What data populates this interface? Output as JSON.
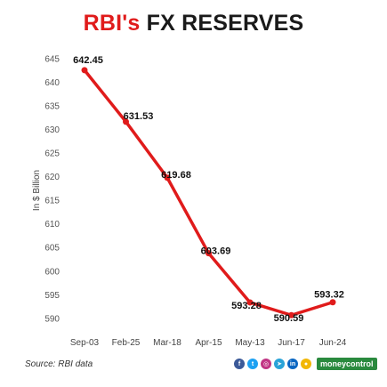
{
  "chart_data": {
    "type": "line",
    "title_part1": "RBI's",
    "title_part2": "FX RESERVES",
    "ylabel": "In $ Billion",
    "categories": [
      "Sep-03",
      "Feb-25",
      "Mar-18",
      "Apr-15",
      "May-13",
      "Jun-17",
      "Jun-24"
    ],
    "values": [
      642.45,
      631.53,
      619.68,
      603.69,
      593.28,
      590.59,
      593.32
    ],
    "data_labels": [
      "642.45",
      "631.53",
      "619.68",
      "603.69",
      "593.28",
      "590.59",
      "593.32"
    ],
    "yticks": [
      590,
      595,
      600,
      605,
      610,
      615,
      620,
      625,
      630,
      635,
      640,
      645
    ],
    "ylim": [
      588,
      646
    ],
    "grid": false,
    "line_color": "#e01b1b"
  },
  "footer": {
    "source": "Source: RBI data",
    "brand": "moneycontrol",
    "social_icons": [
      "facebook-icon",
      "twitter-icon",
      "instagram-icon",
      "telegram-icon",
      "linkedin-icon",
      "koo-icon"
    ]
  }
}
